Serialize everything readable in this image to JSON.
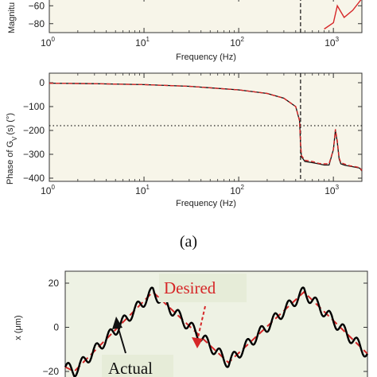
{
  "chart_data": [
    {
      "type": "line",
      "panel": "magnitude",
      "xlabel": "Frequency (Hz)",
      "ylabel": "Magnitu",
      "xscale": "log",
      "xlim": [
        1,
        2000
      ],
      "ylim": [
        -90,
        -50
      ],
      "x_ticks": [
        "10",
        "10",
        "10",
        "10"
      ],
      "x_tick_exponents": [
        "0",
        "1",
        "2",
        "3"
      ],
      "y_ticks": [
        "−60",
        "−80"
      ],
      "y_tick_values": [
        -60,
        -80
      ],
      "vline_x": 450,
      "series": [
        {
          "color": "#d62728",
          "x": [
            800,
            1000,
            1100,
            1300,
            1600,
            2000
          ],
          "y": [
            -86,
            -79,
            -60,
            -73,
            -65,
            -52
          ]
        }
      ]
    },
    {
      "type": "line",
      "panel": "phase",
      "xlabel": "Frequency (Hz)",
      "ylabel": "Phase of G",
      "ylabel_sub": "V",
      "ylabel_tail": "(s) (°)",
      "xscale": "log",
      "xlim": [
        1,
        2000
      ],
      "ylim": [
        -400,
        0
      ],
      "x_ticks": [
        "10",
        "10",
        "10",
        "10"
      ],
      "x_tick_exponents": [
        "0",
        "1",
        "2",
        "3"
      ],
      "y_ticks": [
        "0",
        "−100",
        "−200",
        "−300",
        "−400"
      ],
      "y_tick_values": [
        0,
        -100,
        -200,
        -300,
        -400
      ],
      "hline_y": -180,
      "vline_x": 450,
      "series": [
        {
          "style": "solid",
          "color": "#111111",
          "x": [
            1,
            3,
            10,
            30,
            100,
            200,
            300,
            400,
            440,
            450,
            460,
            500,
            600,
            700,
            800,
            900,
            1000,
            1050,
            1100,
            1150,
            1200,
            1300,
            1400,
            1500,
            1600,
            1700,
            1800,
            1900,
            2000
          ],
          "y": [
            -2,
            -4,
            -8,
            -15,
            -30,
            -45,
            -65,
            -100,
            -160,
            -260,
            -310,
            -330,
            -335,
            -340,
            -345,
            -345,
            -280,
            -200,
            -250,
            -320,
            -340,
            -345,
            -348,
            -350,
            -352,
            -354,
            -356,
            -358,
            -370
          ]
        },
        {
          "style": "dashed",
          "color": "#d62728",
          "x": [
            1,
            3,
            10,
            30,
            100,
            200,
            300,
            400,
            440,
            450,
            460,
            500,
            600,
            700,
            800,
            900,
            1000,
            1050,
            1100,
            1150,
            1200,
            1300,
            1400,
            1500,
            1600,
            1700,
            1800,
            1900,
            2000
          ],
          "y": [
            -2,
            -4,
            -8,
            -15,
            -30,
            -45,
            -65,
            -100,
            -160,
            -255,
            -305,
            -325,
            -330,
            -338,
            -340,
            -340,
            -280,
            -195,
            -245,
            -315,
            -335,
            -340,
            -345,
            -348,
            -350,
            -352,
            -354,
            -356,
            -368
          ]
        }
      ]
    },
    {
      "type": "line",
      "panel": "time",
      "ylabel": "x (μm)",
      "ylim": [
        -20,
        20
      ],
      "y_ticks": [
        "20",
        "0",
        "−20"
      ],
      "y_tick_values": [
        20,
        0,
        -20
      ],
      "xlim": [
        0,
        1
      ],
      "annotations": {
        "desired": "Desired",
        "actual": "Actual"
      },
      "series": [
        {
          "name": "Desired",
          "style": "dashed",
          "color": "#d62728",
          "x": [
            0,
            0.03,
            0.29,
            0.54,
            0.79,
            1.0
          ],
          "y": [
            -18,
            -20,
            16,
            -16,
            16,
            -12
          ]
        },
        {
          "name": "Actual",
          "style": "solid",
          "color": "#000000",
          "x": [
            0,
            0.03,
            0.29,
            0.54,
            0.79,
            1.0
          ],
          "y": [
            -18,
            -20,
            16,
            -16,
            16,
            -12
          ]
        }
      ]
    }
  ],
  "caption": "(a)"
}
